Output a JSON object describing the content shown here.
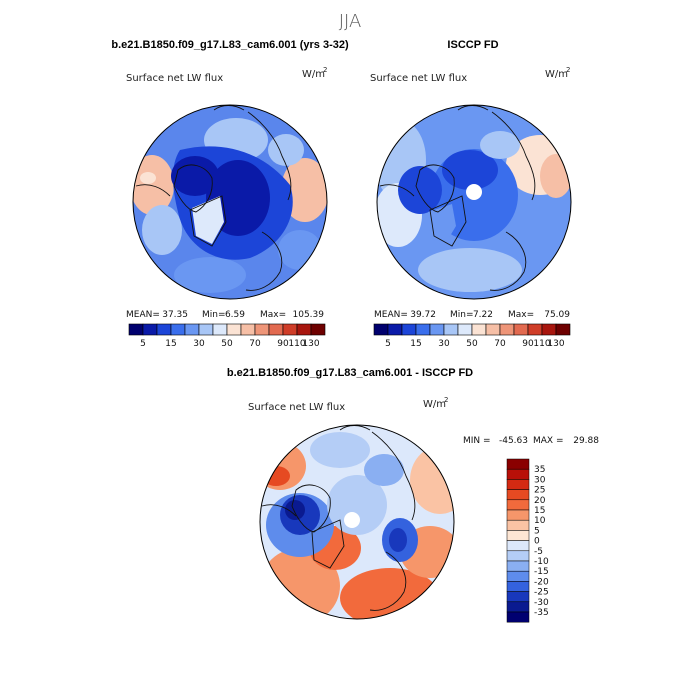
{
  "chart_data": {
    "type": "heatmap",
    "season": "JJA",
    "variable": "Surface net LW flux",
    "units_base": "W/m",
    "units_exp": "2",
    "panels": [
      {
        "id": "model",
        "title": "b.e21.B1850.f09_g17.L83_cam6.001 (yrs 3-32)",
        "subtitle": "Surface net LW flux",
        "stats": {
          "mean_label": "MEAN=",
          "mean": "37.35",
          "min_label": "Min=",
          "min": "6.59",
          "max_label": "Max=",
          "max": "105.39"
        },
        "colorbar": {
          "colors": [
            "#00006e",
            "#0a1aa8",
            "#1c45d8",
            "#3a6eec",
            "#6a97f2",
            "#a8c6f6",
            "#dde9fb",
            "#fbe3d4",
            "#f6bfa6",
            "#ee9578",
            "#e26a50",
            "#cf3d28",
            "#a8160e",
            "#6e0000"
          ],
          "tick_labels": [
            "5",
            "15",
            "30",
            "50",
            "70",
            "90",
            "110",
            "130"
          ],
          "tick_edges": [
            1,
            3,
            5,
            7,
            9,
            11,
            12,
            13
          ]
        }
      },
      {
        "id": "obs",
        "title": "ISCCP FD",
        "subtitle": "Surface net LW flux",
        "stats": {
          "mean_label": "MEAN=",
          "mean": "39.72",
          "min_label": "Min=",
          "min": "7.22",
          "max_label": "Max=",
          "max": "75.09"
        },
        "colorbar": {
          "colors": [
            "#00006e",
            "#0a1aa8",
            "#1c45d8",
            "#3a6eec",
            "#6a97f2",
            "#a8c6f6",
            "#dde9fb",
            "#fbe3d4",
            "#f6bfa6",
            "#ee9578",
            "#e26a50",
            "#cf3d28",
            "#a8160e",
            "#6e0000"
          ],
          "tick_labels": [
            "5",
            "15",
            "30",
            "50",
            "70",
            "90",
            "110",
            "130"
          ],
          "tick_edges": [
            1,
            3,
            5,
            7,
            9,
            11,
            12,
            13
          ]
        }
      },
      {
        "id": "diff",
        "title": "b.e21.B1850.f09_g17.L83_cam6.001 - ISCCP FD",
        "subtitle": "Surface net LW flux",
        "minmax": {
          "min_label": "MIN =",
          "min": "-45.63",
          "max_label": "MAX =",
          "max": "29.88"
        },
        "colorbar": {
          "levels": [
            "35",
            "30",
            "25",
            "20",
            "15",
            "10",
            "5",
            "0",
            "-5",
            "-10",
            "-15",
            "-20",
            "-25",
            "-30",
            "-35"
          ],
          "colors": [
            "#8a0000",
            "#b81008",
            "#d42a12",
            "#e64a22",
            "#f26a3c",
            "#f6966a",
            "#fac3a4",
            "#fde6d4",
            "#dce8fb",
            "#b4cdf6",
            "#8aaff2",
            "#5e8cec",
            "#3462de",
            "#1838bc",
            "#0a1a90",
            "#000070"
          ]
        }
      }
    ]
  }
}
